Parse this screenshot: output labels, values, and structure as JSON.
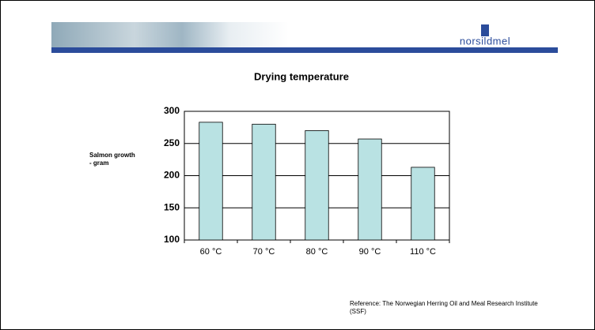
{
  "header": {
    "logo": "norsildmel"
  },
  "chart_data": {
    "type": "bar",
    "title": "Drying temperature",
    "y_label": "Salmon growth - gram",
    "categories": [
      "60 °C",
      "70 °C",
      "80 °C",
      "90 °C",
      "110 °C"
    ],
    "values": [
      283,
      280,
      270,
      257,
      213
    ],
    "color": "#b9e2e3",
    "ylim": [
      100,
      300
    ],
    "yticks": [
      100,
      150,
      200,
      250,
      300
    ],
    "grid": true
  },
  "reference": "Reference: The Norwegian Herring Oil and Meal Research Institute (SSF)"
}
